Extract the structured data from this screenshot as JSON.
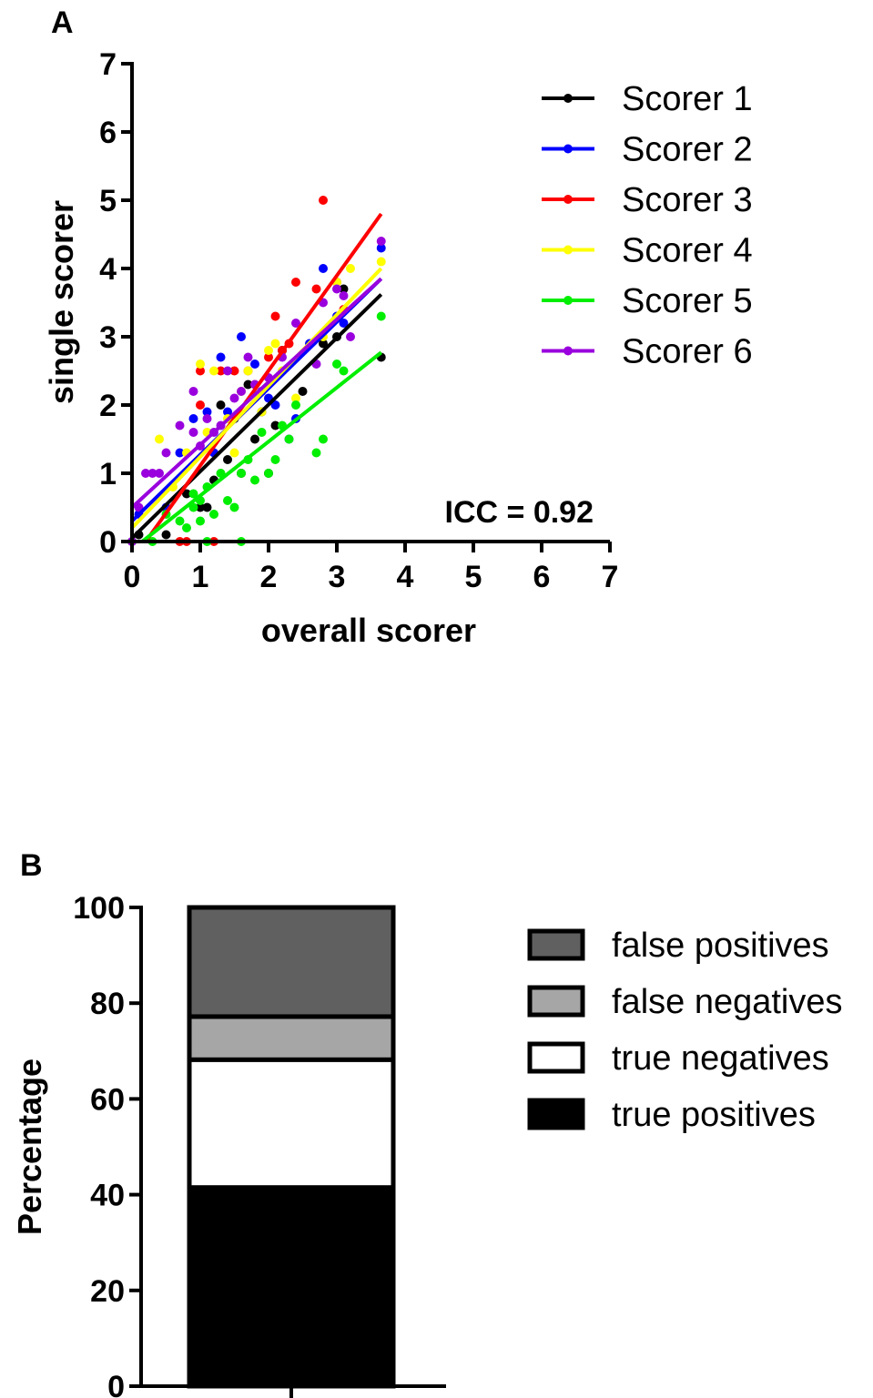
{
  "chart_data": [
    {
      "panel": "A",
      "type": "scatter",
      "xlabel": "overall scorer",
      "ylabel": "single scorer",
      "xlim": [
        0,
        7
      ],
      "ylim": [
        0,
        7
      ],
      "xticks": [
        "0",
        "1",
        "2",
        "3",
        "4",
        "5",
        "6",
        "7"
      ],
      "yticks": [
        "0",
        "1",
        "2",
        "3",
        "4",
        "5",
        "6",
        "7"
      ],
      "annotation": "ICC = 0.92",
      "legend_position": "top-right",
      "series": [
        {
          "name": "Scorer 1",
          "color": "#000000",
          "fit": [
            [
              0,
              0.05
            ],
            [
              3.65,
              3.62
            ]
          ],
          "points": [
            [
              0,
              0
            ],
            [
              0.1,
              0.1
            ],
            [
              0.5,
              0.1
            ],
            [
              0.8,
              0.7
            ],
            [
              1.0,
              0.5
            ],
            [
              1.1,
              0.5
            ],
            [
              1.2,
              0.9
            ],
            [
              1.3,
              2.0
            ],
            [
              1.4,
              1.2
            ],
            [
              1.5,
              1.8
            ],
            [
              1.6,
              1.0
            ],
            [
              1.7,
              2.3
            ],
            [
              1.8,
              1.5
            ],
            [
              1.9,
              1.9
            ],
            [
              2.0,
              1.0
            ],
            [
              2.1,
              1.7
            ],
            [
              2.2,
              2.8
            ],
            [
              2.5,
              2.2
            ],
            [
              2.8,
              2.9
            ],
            [
              3.0,
              3.0
            ],
            [
              3.1,
              3.7
            ],
            [
              3.65,
              2.7
            ]
          ]
        },
        {
          "name": "Scorer 2",
          "color": "#0000ff",
          "fit": [
            [
              0,
              0.3
            ],
            [
              3.65,
              3.85
            ]
          ],
          "points": [
            [
              0.1,
              0.4
            ],
            [
              0.5,
              0.5
            ],
            [
              0.7,
              1.3
            ],
            [
              0.9,
              1.8
            ],
            [
              1.1,
              1.9
            ],
            [
              1.2,
              1.3
            ],
            [
              1.3,
              2.7
            ],
            [
              1.4,
              1.9
            ],
            [
              1.6,
              3.0
            ],
            [
              1.8,
              2.6
            ],
            [
              1.9,
              2.2
            ],
            [
              2.0,
              2.1
            ],
            [
              2.1,
              2.0
            ],
            [
              2.3,
              1.5
            ],
            [
              2.4,
              1.8
            ],
            [
              2.6,
              2.9
            ],
            [
              2.8,
              4.0
            ],
            [
              3.0,
              3.3
            ],
            [
              3.1,
              3.2
            ],
            [
              3.65,
              4.3
            ]
          ]
        },
        {
          "name": "Scorer 3",
          "color": "#ff0000",
          "fit": [
            [
              0.2,
              0
            ],
            [
              3.65,
              4.8
            ]
          ],
          "points": [
            [
              0.7,
              0
            ],
            [
              0.8,
              0
            ],
            [
              1.0,
              2.0
            ],
            [
              1.0,
              2.5
            ],
            [
              1.2,
              0
            ],
            [
              1.3,
              2.5
            ],
            [
              1.5,
              2.5
            ],
            [
              1.7,
              2.5
            ],
            [
              1.8,
              2.3
            ],
            [
              2.0,
              2.7
            ],
            [
              2.1,
              3.3
            ],
            [
              2.2,
              2.8
            ],
            [
              2.3,
              2.9
            ],
            [
              2.4,
              3.8
            ],
            [
              2.7,
              3.7
            ],
            [
              2.8,
              5.0
            ],
            [
              3.0,
              3.8
            ],
            [
              3.1,
              3.4
            ]
          ]
        },
        {
          "name": "Scorer 4",
          "color": "#ffff00",
          "fit": [
            [
              0,
              0.2
            ],
            [
              3.65,
              4.0
            ]
          ],
          "points": [
            [
              0.4,
              1.5
            ],
            [
              0.6,
              0.8
            ],
            [
              0.8,
              1.3
            ],
            [
              1.0,
              2.6
            ],
            [
              1.1,
              1.6
            ],
            [
              1.2,
              2.5
            ],
            [
              1.4,
              1.8
            ],
            [
              1.5,
              1.3
            ],
            [
              1.6,
              2.2
            ],
            [
              1.7,
              2.5
            ],
            [
              1.9,
              1.9
            ],
            [
              2.0,
              2.8
            ],
            [
              2.1,
              2.9
            ],
            [
              2.2,
              2.5
            ],
            [
              2.4,
              2.1
            ],
            [
              2.8,
              3.0
            ],
            [
              3.0,
              3.8
            ],
            [
              3.2,
              4.0
            ],
            [
              3.65,
              4.1
            ]
          ]
        },
        {
          "name": "Scorer 5",
          "color": "#00ee00",
          "fit": [
            [
              0.15,
              0
            ],
            [
              3.65,
              2.77
            ]
          ],
          "points": [
            [
              0.3,
              0
            ],
            [
              0.5,
              0.4
            ],
            [
              0.7,
              0.3
            ],
            [
              0.8,
              0.2
            ],
            [
              0.9,
              0.5
            ],
            [
              0.9,
              0.7
            ],
            [
              1.0,
              0.3
            ],
            [
              1.0,
              0.6
            ],
            [
              1.1,
              0
            ],
            [
              1.1,
              0.8
            ],
            [
              1.2,
              0.4
            ],
            [
              1.3,
              1.0
            ],
            [
              1.4,
              0.6
            ],
            [
              1.5,
              0.5
            ],
            [
              1.6,
              0
            ],
            [
              1.6,
              1.0
            ],
            [
              1.7,
              1.2
            ],
            [
              1.8,
              0.9
            ],
            [
              1.9,
              1.6
            ],
            [
              2.0,
              1.0
            ],
            [
              2.1,
              1.2
            ],
            [
              2.2,
              1.7
            ],
            [
              2.3,
              1.5
            ],
            [
              2.4,
              2.0
            ],
            [
              2.7,
              1.3
            ],
            [
              2.8,
              1.5
            ],
            [
              3.0,
              2.6
            ],
            [
              3.1,
              2.5
            ],
            [
              3.65,
              3.3
            ]
          ]
        },
        {
          "name": "Scorer 6",
          "color": "#9900dd",
          "fit": [
            [
              0,
              0.5
            ],
            [
              3.65,
              3.85
            ]
          ],
          "points": [
            [
              0,
              0
            ],
            [
              0.1,
              0.5
            ],
            [
              0.2,
              1.0
            ],
            [
              0.3,
              1.0
            ],
            [
              0.4,
              1.0
            ],
            [
              0.5,
              1.3
            ],
            [
              0.7,
              1.7
            ],
            [
              0.9,
              1.6
            ],
            [
              0.9,
              2.2
            ],
            [
              1.0,
              1.4
            ],
            [
              1.1,
              1.8
            ],
            [
              1.2,
              1.6
            ],
            [
              1.3,
              1.7
            ],
            [
              1.4,
              2.5
            ],
            [
              1.5,
              2.1
            ],
            [
              1.6,
              2.2
            ],
            [
              1.7,
              2.7
            ],
            [
              1.8,
              2.3
            ],
            [
              2.0,
              2.4
            ],
            [
              2.2,
              2.7
            ],
            [
              2.4,
              3.2
            ],
            [
              2.7,
              2.6
            ],
            [
              2.8,
              3.5
            ],
            [
              3.0,
              3.7
            ],
            [
              3.1,
              3.6
            ],
            [
              3.2,
              3.0
            ],
            [
              3.65,
              4.4
            ]
          ]
        }
      ]
    },
    {
      "panel": "B",
      "type": "bar",
      "stacked": true,
      "ylabel": "Percentage",
      "ylim": [
        0,
        100
      ],
      "yticks": [
        "0",
        "20",
        "40",
        "60",
        "80",
        "100"
      ],
      "legend_position": "right",
      "series": [
        {
          "name": "true positives",
          "value": 41.5,
          "color": "#000000"
        },
        {
          "name": "true negatives",
          "value": 26.7,
          "color": "#ffffff"
        },
        {
          "name": "false negatives",
          "value": 9.0,
          "color": "#a6a6a6"
        },
        {
          "name": "false positives",
          "value": 22.8,
          "color": "#606060"
        }
      ],
      "legend_order": [
        "false positives",
        "false negatives",
        "true negatives",
        "true positives"
      ]
    }
  ]
}
